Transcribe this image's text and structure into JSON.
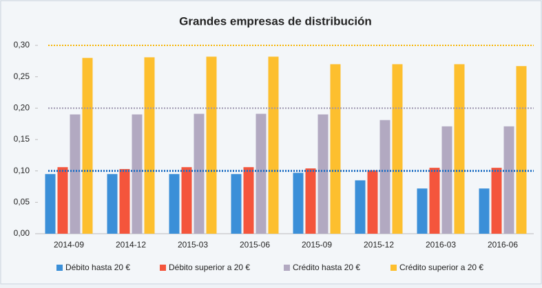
{
  "chart_data": {
    "type": "bar",
    "title": "Grandes empresas de distribución",
    "categories": [
      "2014-09",
      "2014-12",
      "2015-03",
      "2015-06",
      "2015-09",
      "2015-12",
      "2016-03",
      "2016-06"
    ],
    "series": [
      {
        "name": "Débito hasta 20 €",
        "color": "#3b8fd8",
        "values": [
          0.095,
          0.095,
          0.095,
          0.095,
          0.097,
          0.085,
          0.072,
          0.072
        ]
      },
      {
        "name": "Débito superior a 20 €",
        "color": "#f4553c",
        "values": [
          0.106,
          0.103,
          0.106,
          0.106,
          0.104,
          0.101,
          0.105,
          0.105
        ]
      },
      {
        "name": "Crédito hasta 20 €",
        "color": "#b2a9c1",
        "values": [
          0.19,
          0.19,
          0.191,
          0.191,
          0.19,
          0.181,
          0.171,
          0.171
        ]
      },
      {
        "name": "Crédito superior a 20 €",
        "color": "#fdbf2e",
        "values": [
          0.28,
          0.281,
          0.282,
          0.282,
          0.27,
          0.27,
          0.27,
          0.267
        ]
      }
    ],
    "ylim": [
      0,
      0.3
    ],
    "yticks": [
      {
        "value": 0,
        "label": "0,00"
      },
      {
        "value": 0.05,
        "label": "0,05"
      },
      {
        "value": 0.1,
        "label": "0,10"
      },
      {
        "value": 0.15,
        "label": "0,15"
      },
      {
        "value": 0.2,
        "label": "0,20"
      },
      {
        "value": 0.25,
        "label": "0,25"
      },
      {
        "value": 0.3,
        "label": "0,30"
      }
    ],
    "reference_lines": [
      {
        "value": 0.3,
        "color": "#f7b400"
      },
      {
        "value": 0.2,
        "color": "#9a93ad"
      },
      {
        "value": 0.1,
        "color": "#1f6fc4"
      }
    ],
    "legend": "bottom"
  }
}
